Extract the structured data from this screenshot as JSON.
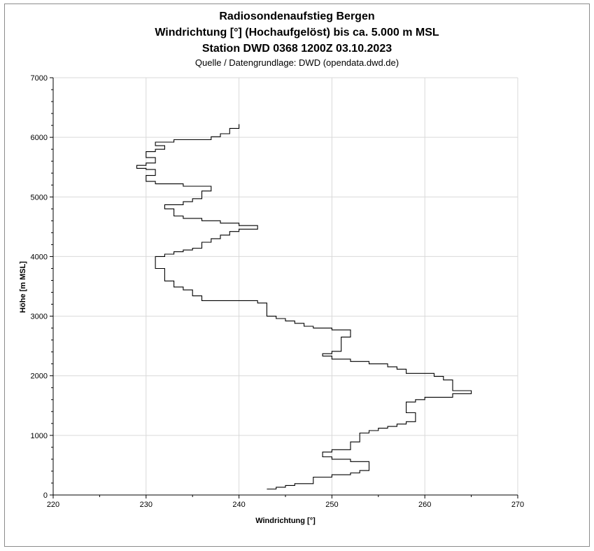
{
  "chart_data": {
    "type": "line",
    "title_lines": [
      "Radiosondenaufstieg Bergen",
      "Windrichtung [°] (Hochaufgelöst) bis ca. 5.000 m MSL",
      "Station DWD 0368 1200Z 03.10.2023"
    ],
    "subtitle": "Quelle / Datengrundlage: DWD (opendata.dwd.de)",
    "xlabel": "Windrichtung [°]",
    "ylabel": "Höhe [m MSL]",
    "xlim": [
      220,
      270
    ],
    "ylim": [
      0,
      7000
    ],
    "x_ticks": [
      "220",
      "230",
      "240",
      "250",
      "260",
      "270"
    ],
    "y_ticks": [
      "0",
      "1000",
      "2000",
      "3000",
      "4000",
      "5000",
      "6000",
      "7000"
    ],
    "grid": true,
    "legend": "none",
    "line_color": "#000000",
    "series": [
      {
        "step_profile": [
          [
            243,
            100
          ],
          [
            244,
            130
          ],
          [
            245,
            160
          ],
          [
            246,
            190
          ],
          [
            248,
            220
          ],
          [
            248,
            300
          ],
          [
            250,
            340
          ],
          [
            252,
            370
          ],
          [
            253,
            410
          ],
          [
            254,
            470
          ],
          [
            254,
            560
          ],
          [
            252,
            600
          ],
          [
            250,
            640
          ],
          [
            249,
            690
          ],
          [
            249,
            720
          ],
          [
            250,
            760
          ],
          [
            252,
            800
          ],
          [
            252,
            890
          ],
          [
            253,
            940
          ],
          [
            253,
            1040
          ],
          [
            254,
            1080
          ],
          [
            255,
            1120
          ],
          [
            256,
            1150
          ],
          [
            257,
            1190
          ],
          [
            258,
            1230
          ],
          [
            259,
            1270
          ],
          [
            259,
            1380
          ],
          [
            258,
            1420
          ],
          [
            258,
            1560
          ],
          [
            259,
            1600
          ],
          [
            260,
            1640
          ],
          [
            263,
            1700
          ],
          [
            265,
            1750
          ],
          [
            263,
            1800
          ],
          [
            263,
            1930
          ],
          [
            262,
            1990
          ],
          [
            261,
            2040
          ],
          [
            258,
            2110
          ],
          [
            257,
            2150
          ],
          [
            256,
            2200
          ],
          [
            254,
            2240
          ],
          [
            252,
            2280
          ],
          [
            250,
            2330
          ],
          [
            249,
            2370
          ],
          [
            250,
            2410
          ],
          [
            251,
            2480
          ],
          [
            251,
            2650
          ],
          [
            252,
            2690
          ],
          [
            252,
            2770
          ],
          [
            250,
            2800
          ],
          [
            248,
            2830
          ],
          [
            247,
            2880
          ],
          [
            246,
            2920
          ],
          [
            245,
            2960
          ],
          [
            244,
            3000
          ],
          [
            243,
            3060
          ],
          [
            243,
            3220
          ],
          [
            242,
            3260
          ],
          [
            236,
            3300
          ],
          [
            236,
            3340
          ],
          [
            235,
            3380
          ],
          [
            235,
            3440
          ],
          [
            234,
            3490
          ],
          [
            233,
            3540
          ],
          [
            233,
            3590
          ],
          [
            232,
            3640
          ],
          [
            232,
            3720
          ],
          [
            232,
            3800
          ],
          [
            231,
            3860
          ],
          [
            231,
            4000
          ],
          [
            232,
            4040
          ],
          [
            233,
            4080
          ],
          [
            234,
            4110
          ],
          [
            235,
            4140
          ],
          [
            236,
            4180
          ],
          [
            236,
            4240
          ],
          [
            237,
            4300
          ],
          [
            238,
            4360
          ],
          [
            239,
            4420
          ],
          [
            240,
            4460
          ],
          [
            242,
            4520
          ],
          [
            240,
            4560
          ],
          [
            238,
            4600
          ],
          [
            236,
            4640
          ],
          [
            234,
            4680
          ],
          [
            233,
            4720
          ],
          [
            233,
            4800
          ],
          [
            232,
            4870
          ],
          [
            234,
            4920
          ],
          [
            235,
            4970
          ],
          [
            236,
            5000
          ],
          [
            236,
            5100
          ],
          [
            237,
            5120
          ],
          [
            237,
            5180
          ],
          [
            234,
            5220
          ],
          [
            231,
            5260
          ],
          [
            230,
            5300
          ],
          [
            230,
            5360
          ],
          [
            231,
            5380
          ],
          [
            231,
            5460
          ],
          [
            230,
            5480
          ],
          [
            229,
            5530
          ],
          [
            230,
            5570
          ],
          [
            231,
            5610
          ],
          [
            231,
            5660
          ],
          [
            230,
            5700
          ],
          [
            230,
            5760
          ],
          [
            231,
            5800
          ],
          [
            232,
            5830
          ],
          [
            232,
            5860
          ],
          [
            231,
            5880
          ],
          [
            231,
            5920
          ],
          [
            233,
            5960
          ],
          [
            237,
            6010
          ],
          [
            238,
            6060
          ],
          [
            239,
            6100
          ],
          [
            239,
            6150
          ],
          [
            240,
            6180
          ],
          [
            240,
            6220
          ]
        ]
      }
    ]
  }
}
